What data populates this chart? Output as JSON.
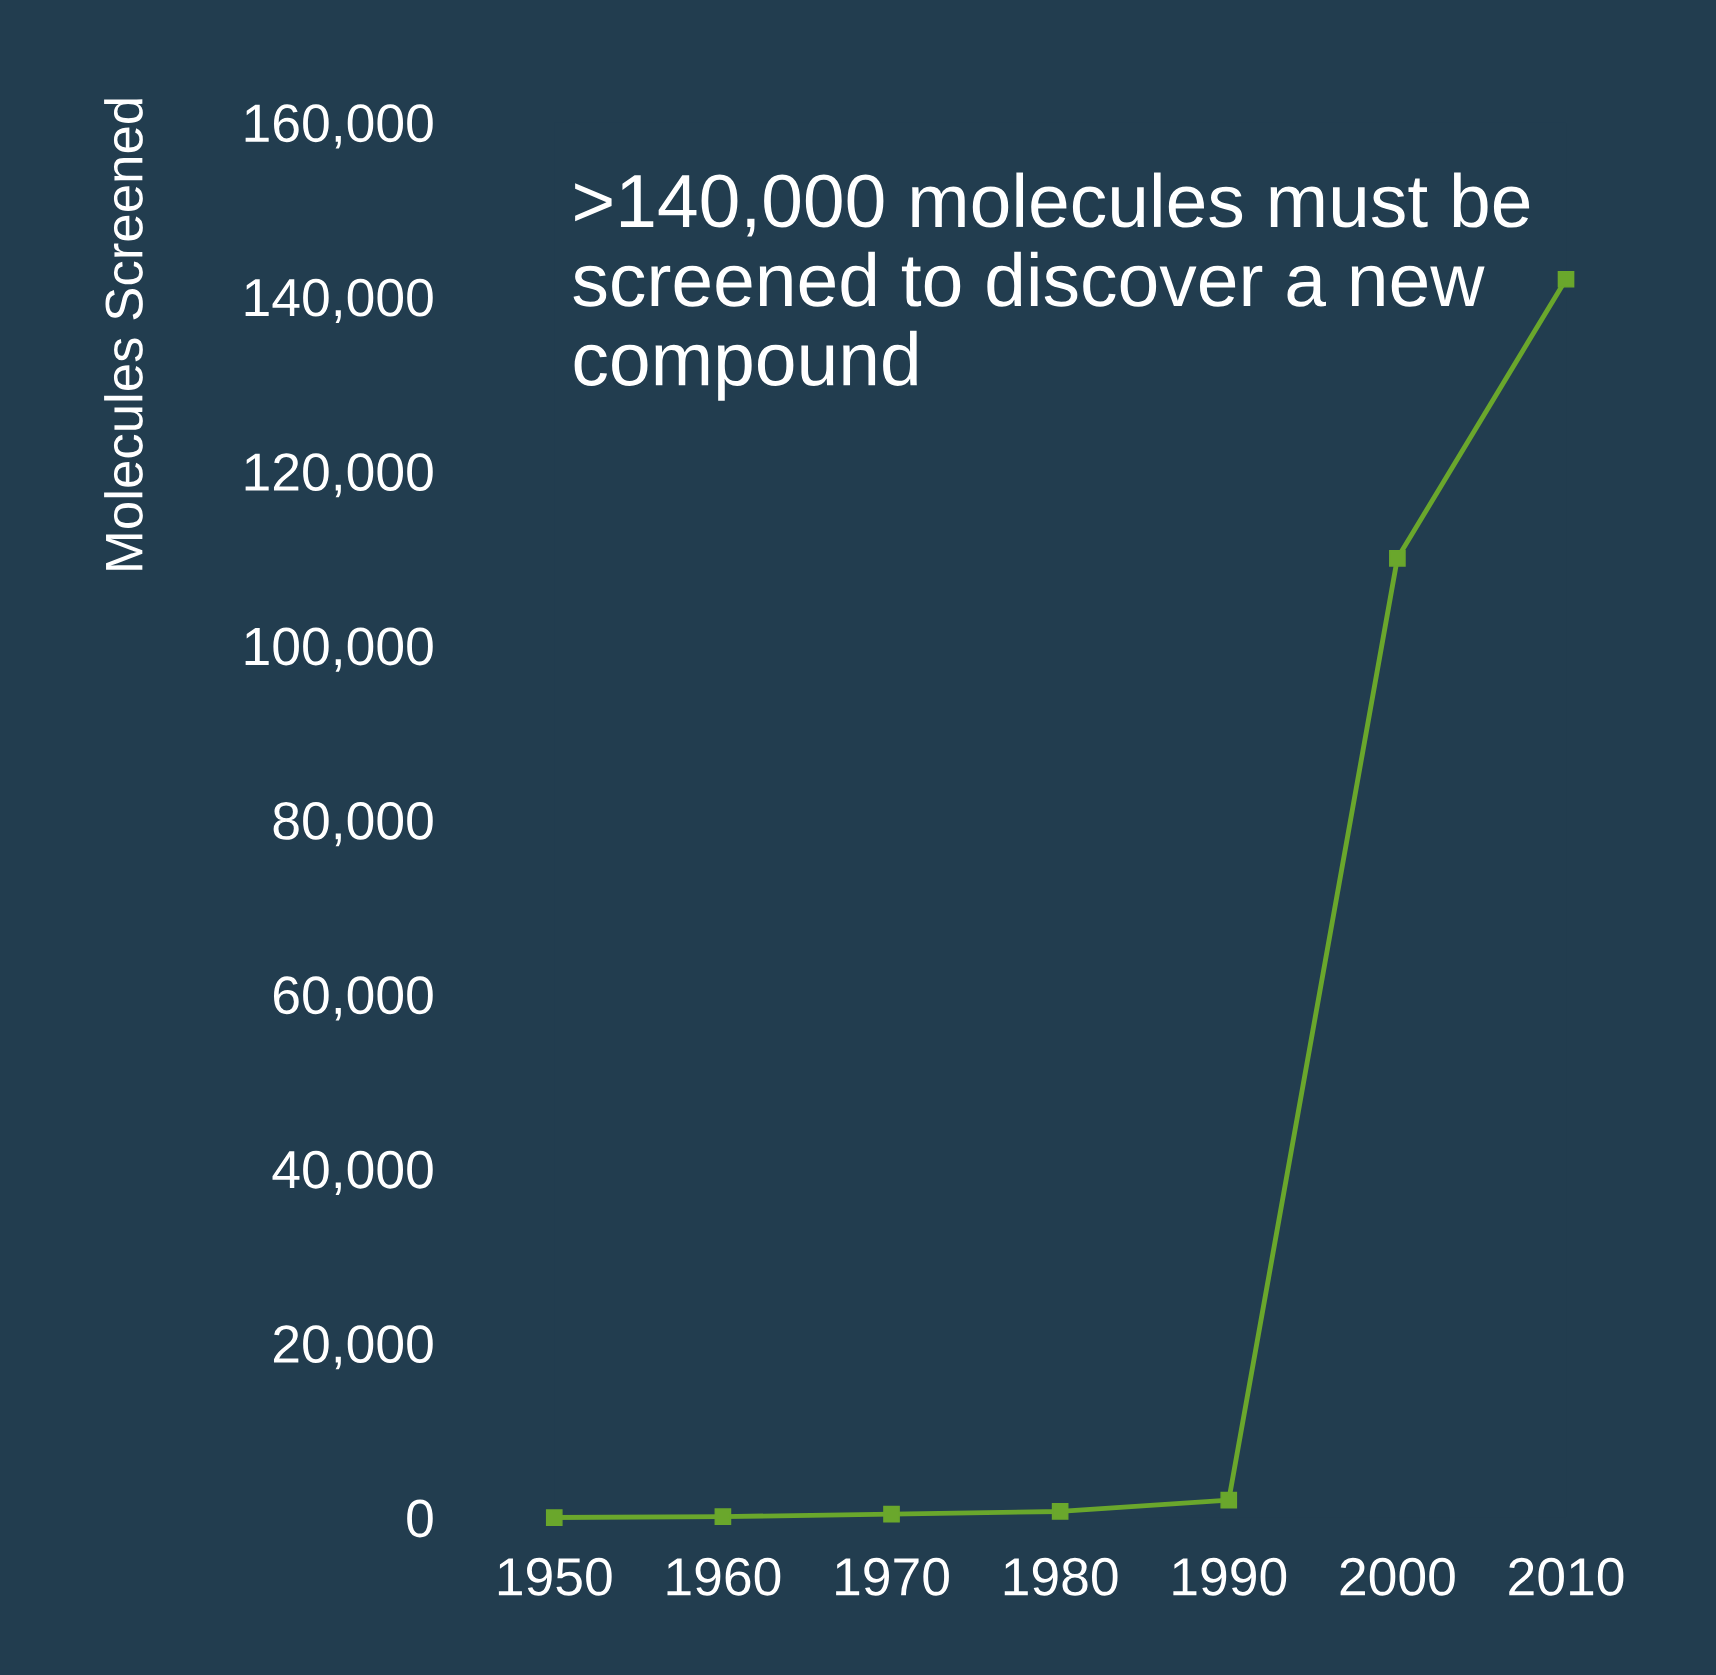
{
  "chart_data": {
    "type": "line",
    "ylabel": "Molecules Screened",
    "x": [
      1950,
      1960,
      1970,
      1980,
      1990,
      2000,
      2010
    ],
    "series": [
      {
        "color": "#6aa72c",
        "values": [
          0,
          100,
          400,
          700,
          2000,
          110000,
          142000
        ]
      }
    ],
    "xlim": [
      1950,
      2010
    ],
    "xticks": [
      1950,
      1960,
      1970,
      1980,
      1990,
      2000,
      2010
    ],
    "ylim": [
      0,
      160000
    ],
    "yticks": [
      {
        "value": 0,
        "label": "0"
      },
      {
        "value": 20000,
        "label": "20,000"
      },
      {
        "value": 40000,
        "label": "40,000"
      },
      {
        "value": 60000,
        "label": "60,000"
      },
      {
        "value": 80000,
        "label": "80,000"
      },
      {
        "value": 100000,
        "label": "100,000"
      },
      {
        "value": 120000,
        "label": "120,000"
      },
      {
        "value": 140000,
        "label": "140,000"
      },
      {
        "value": 160000,
        "label": "160,000"
      }
    ],
    "annotations": [
      ">140,000 molecules must be\nscreened to discover a new\ncompound"
    ],
    "grid": false,
    "legend": false,
    "marker": "square",
    "line_style": "solid"
  }
}
